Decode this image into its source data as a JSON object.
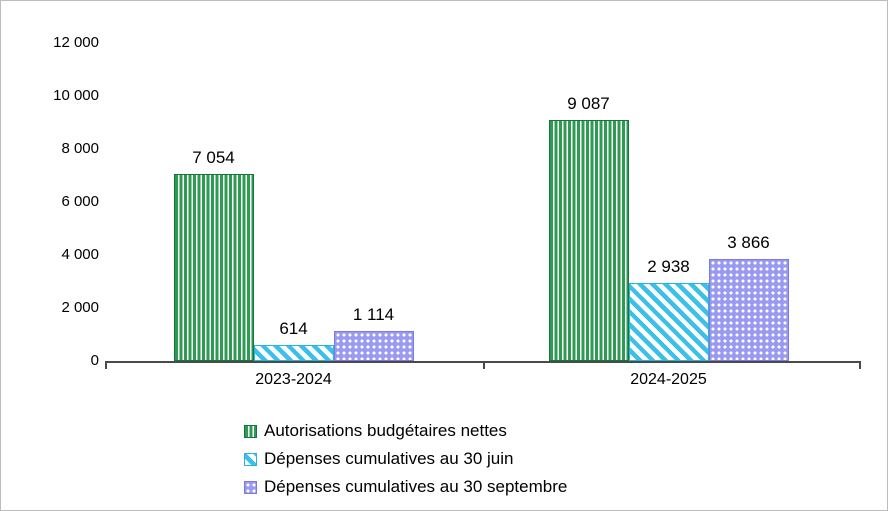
{
  "chart_data": {
    "type": "bar",
    "title": "",
    "xlabel": "",
    "ylabel": "",
    "categories": [
      "2023-2024",
      "2024-2025"
    ],
    "series": [
      {
        "name": "Autorisations budgétaires nettes",
        "values": [
          7054,
          9087
        ],
        "labels": [
          "7 054",
          "9 087"
        ],
        "color": "#2e9b52",
        "pattern": "vertical-lines"
      },
      {
        "name": "Dépenses cumulatives au 30 juin",
        "values": [
          614,
          2938
        ],
        "labels": [
          "614",
          "2 938"
        ],
        "color": "#3bc0ea",
        "pattern": "diagonal-stripes"
      },
      {
        "name": "Dépenses cumulatives au 30 septembre",
        "values": [
          1114,
          3866
        ],
        "labels": [
          "1 114",
          "3 866"
        ],
        "color": "#9a9af0",
        "pattern": "dots"
      }
    ],
    "ylim": [
      0,
      12000
    ],
    "ytick_interval": 2000,
    "yticks": [
      "12 000",
      "10 000",
      "8 000",
      "6 000",
      "4 000",
      "2 000",
      "0"
    ],
    "grid": false,
    "legend_position": "bottom-left"
  }
}
